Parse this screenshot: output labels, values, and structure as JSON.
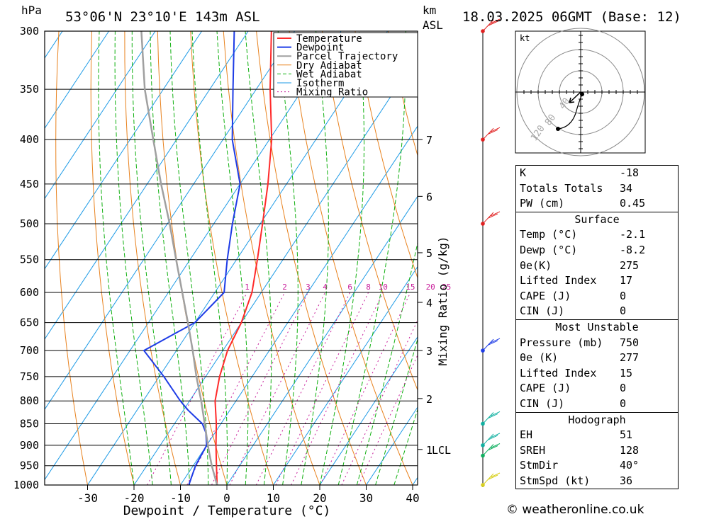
{
  "header": {
    "pressure_unit": "hPa",
    "location": "53°06'N  23°10'E  143m  ASL",
    "km_label": "km",
    "asl_label": "ASL",
    "datetime": "18.03.2025  06GMT  (Base: 12)"
  },
  "legend": [
    "Temperature",
    "Dewpoint",
    "Parcel Trajectory",
    "Dry Adiabat",
    "Wet Adiabat",
    "Isotherm",
    "Mixing Ratio"
  ],
  "colors": {
    "temperature": "#ff2a2a",
    "dewpoint": "#1e3ce6",
    "parcel": "#a0a0a0",
    "dry_adiabat": "#e8821e",
    "wet_adiabat": "#10b010",
    "isotherm": "#1e9be6",
    "mixing_ratio": "#c81e9b"
  },
  "chart_data": {
    "type": "line",
    "xlabel": "Dewpoint / Temperature (°C)",
    "ylabel": "hPa",
    "right_axis_label": "Mixing Ratio (g/kg)",
    "x_ticks": [
      -30,
      -20,
      -10,
      0,
      10,
      20,
      30,
      40
    ],
    "pressure_levels": [
      300,
      350,
      400,
      450,
      500,
      550,
      600,
      650,
      700,
      750,
      800,
      850,
      900,
      950,
      1000
    ],
    "height_km_ticks": [
      {
        "label": "7",
        "p": 400
      },
      {
        "label": "6",
        "p": 465
      },
      {
        "label": "5",
        "p": 540
      },
      {
        "label": "4",
        "p": 616
      },
      {
        "label": "3",
        "p": 700
      },
      {
        "label": "2",
        "p": 795
      },
      {
        "label": "1",
        "p": 910
      }
    ],
    "lcl_label": "LCL",
    "lcl_pressure": 910,
    "mixing_ratio_labels": [
      "1",
      "2",
      "3",
      "4",
      "6",
      "8",
      "10",
      "15",
      "20",
      "25"
    ],
    "series": [
      {
        "name": "Temperature",
        "points": [
          [
            1000,
            -2.1
          ],
          [
            950,
            -5
          ],
          [
            900,
            -8
          ],
          [
            850,
            -11
          ],
          [
            800,
            -14.5
          ],
          [
            750,
            -17
          ],
          [
            700,
            -19
          ],
          [
            650,
            -20
          ],
          [
            600,
            -22
          ],
          [
            550,
            -25.5
          ],
          [
            500,
            -29.5
          ],
          [
            450,
            -34
          ],
          [
            400,
            -39.5
          ],
          [
            350,
            -47
          ],
          [
            300,
            -55
          ]
        ]
      },
      {
        "name": "Dewpoint",
        "points": [
          [
            1000,
            -8.2
          ],
          [
            950,
            -9.5
          ],
          [
            900,
            -10
          ],
          [
            870,
            -12
          ],
          [
            850,
            -14
          ],
          [
            820,
            -19
          ],
          [
            800,
            -22
          ],
          [
            750,
            -29
          ],
          [
            700,
            -37
          ],
          [
            650,
            -30
          ],
          [
            600,
            -28
          ],
          [
            550,
            -32
          ],
          [
            500,
            -36
          ],
          [
            450,
            -40
          ],
          [
            400,
            -48
          ],
          [
            350,
            -55
          ],
          [
            300,
            -63
          ]
        ]
      },
      {
        "name": "Parcel Trajectory",
        "points": [
          [
            1000,
            -2.1
          ],
          [
            950,
            -6
          ],
          [
            910,
            -9
          ],
          [
            850,
            -13.5
          ],
          [
            800,
            -17.5
          ],
          [
            750,
            -22
          ],
          [
            700,
            -26.5
          ],
          [
            650,
            -31.5
          ],
          [
            600,
            -37
          ],
          [
            550,
            -43
          ],
          [
            500,
            -49.5
          ],
          [
            450,
            -57
          ],
          [
            400,
            -65
          ],
          [
            350,
            -74
          ],
          [
            300,
            -83
          ]
        ]
      }
    ]
  },
  "hodograph": {
    "unit_label": "kt",
    "ring_labels": [
      "40",
      "80",
      "120"
    ]
  },
  "indices": {
    "general": [
      {
        "k": "K",
        "v": "-18"
      },
      {
        "k": "Totals Totals",
        "v": "34"
      },
      {
        "k": "PW (cm)",
        "v": "0.45"
      }
    ],
    "surface_title": "Surface",
    "surface": [
      {
        "k": "Temp (°C)",
        "v": "-2.1"
      },
      {
        "k": "Dewp (°C)",
        "v": "-8.2"
      },
      {
        "k": "θe(K)",
        "v": "275"
      },
      {
        "k": "Lifted Index",
        "v": "17"
      },
      {
        "k": "CAPE (J)",
        "v": "0"
      },
      {
        "k": "CIN (J)",
        "v": "0"
      }
    ],
    "mu_title": "Most Unstable",
    "mu": [
      {
        "k": "Pressure (mb)",
        "v": "750"
      },
      {
        "k": "θe (K)",
        "v": "277"
      },
      {
        "k": "Lifted Index",
        "v": "15"
      },
      {
        "k": "CAPE (J)",
        "v": "0"
      },
      {
        "k": "CIN (J)",
        "v": "0"
      }
    ],
    "hodo_title": "Hodograph",
    "hodo": [
      {
        "k": "EH",
        "v": "51"
      },
      {
        "k": "SREH",
        "v": "128"
      },
      {
        "k": "StmDir",
        "v": "40°"
      },
      {
        "k": "StmSpd (kt)",
        "v": "36"
      }
    ]
  },
  "credit": "© weatheronline.co.uk"
}
